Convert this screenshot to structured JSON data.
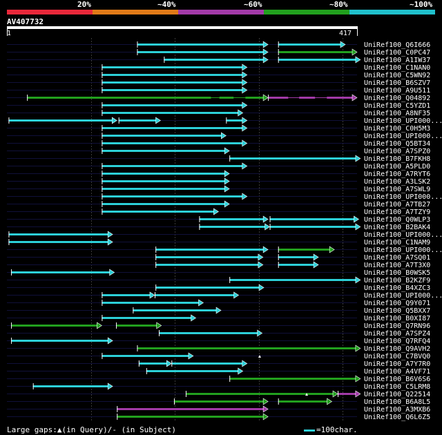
{
  "legend": {
    "labels": [
      "20%",
      "~40%",
      "~60%",
      "~80%",
      "~100%"
    ],
    "colors": [
      "#e8283a",
      "#e07a18",
      "#a23aa8",
      "#22a01e",
      "#20c0cc"
    ]
  },
  "query": {
    "title": "AV407732",
    "start": "1",
    "end": "417"
  },
  "footer": {
    "gaps_text": "Large gaps:▲(in Query)/- (in Subject)",
    "scale_text": "=100char."
  },
  "chart_data": {
    "type": "alignment-overview",
    "query_length": 417,
    "hits": [
      {
        "name": "UniRef100_Q6I666",
        "segs": [
          [
            155,
            311,
            "#2cd0d8"
          ],
          [
            323,
            403,
            "#2cd0d8"
          ]
        ]
      },
      {
        "name": "UniRef100_C0PC47",
        "segs": [
          [
            155,
            311,
            "#2cd0d8"
          ],
          [
            323,
            417,
            "#22a01e"
          ]
        ]
      },
      {
        "name": "UniRef100_A1IW37",
        "segs": [
          [
            187,
            311,
            "#2cd0d8"
          ],
          [
            323,
            421,
            "#2cd0d8"
          ]
        ]
      },
      {
        "name": "UniRef100_C1NAN0",
        "segs": [
          [
            113,
            286,
            "#2cd0d8"
          ]
        ]
      },
      {
        "name": "UniRef100_C5WN92",
        "segs": [
          [
            113,
            286,
            "#2cd0d8"
          ]
        ]
      },
      {
        "name": "UniRef100_B6SZV7",
        "segs": [
          [
            113,
            286,
            "#2cd0d8"
          ]
        ]
      },
      {
        "name": "UniRef100_A9U511",
        "segs": [
          [
            113,
            286,
            "#2cd0d8"
          ]
        ]
      },
      {
        "name": "UniRef100_Q04892",
        "segs": [
          [
            24,
            311,
            "#22a01e"
          ],
          [
            311,
            417,
            "#a23aa8"
          ]
        ]
      },
      {
        "name": "UniRef100_C5YZD1",
        "segs": [
          [
            113,
            286,
            "#2cd0d8"
          ]
        ]
      },
      {
        "name": "UniRef100_A8NF35",
        "segs": [
          [
            113,
            281,
            "#2cd0d8"
          ]
        ]
      },
      {
        "name": "UniRef100_UPI000...",
        "segs": [
          [
            2,
            131,
            "#2cd0d8"
          ],
          [
            133,
            183,
            "#2cd0d8"
          ],
          [
            261,
            286,
            "#2cd0d8"
          ]
        ]
      },
      {
        "name": "UniRef100_C0H5M3",
        "segs": [
          [
            113,
            286,
            "#2cd0d8"
          ]
        ]
      },
      {
        "name": "UniRef100_UPI000...",
        "segs": [
          [
            113,
            261,
            "#2cd0d8"
          ]
        ]
      },
      {
        "name": "UniRef100_Q5BT34",
        "segs": [
          [
            113,
            286,
            "#2cd0d8"
          ]
        ]
      },
      {
        "name": "UniRef100_A7SPZ0",
        "segs": [
          [
            113,
            265,
            "#2cd0d8"
          ]
        ]
      },
      {
        "name": "UniRef100_B7FKH8",
        "segs": [
          [
            265,
            421,
            "#2cd0d8"
          ]
        ]
      },
      {
        "name": "UniRef100_A5PLD0",
        "segs": [
          [
            113,
            286,
            "#2cd0d8"
          ]
        ]
      },
      {
        "name": "UniRef100_A7RYT6",
        "segs": [
          [
            113,
            265,
            "#2cd0d8"
          ]
        ]
      },
      {
        "name": "UniRef100_A3LSK2",
        "segs": [
          [
            113,
            265,
            "#2cd0d8"
          ]
        ]
      },
      {
        "name": "UniRef100_A7SWL9",
        "segs": [
          [
            113,
            265,
            "#2cd0d8"
          ]
        ]
      },
      {
        "name": "UniRef100_UPI000...",
        "segs": [
          [
            113,
            286,
            "#2cd0d8"
          ]
        ]
      },
      {
        "name": "UniRef100_A7TB27",
        "segs": [
          [
            113,
            265,
            "#2cd0d8"
          ]
        ]
      },
      {
        "name": "UniRef100_A7TZY9",
        "segs": [
          [
            113,
            252,
            "#2cd0d8"
          ]
        ]
      },
      {
        "name": "UniRef100_Q0WLP3",
        "segs": [
          [
            229,
            311,
            "#2cd0d8"
          ],
          [
            313,
            419,
            "#2cd0d8"
          ]
        ]
      },
      {
        "name": "UniRef100_B2BAK4",
        "segs": [
          [
            229,
            313,
            "#2cd0d8"
          ],
          [
            313,
            421,
            "#2cd0d8"
          ]
        ]
      },
      {
        "name": "UniRef100_UPI000...",
        "segs": [
          [
            2,
            126,
            "#2cd0d8"
          ]
        ]
      },
      {
        "name": "UniRef100_C1NAM9",
        "segs": [
          [
            2,
            126,
            "#2cd0d8"
          ]
        ]
      },
      {
        "name": "UniRef100_UPI000...",
        "segs": [
          [
            177,
            311,
            "#2cd0d8"
          ],
          [
            323,
            390,
            "#22a01e"
          ]
        ]
      },
      {
        "name": "UniRef100_A7SQ01",
        "segs": [
          [
            177,
            305,
            "#2cd0d8"
          ],
          [
            323,
            371,
            "#2cd0d8"
          ]
        ]
      },
      {
        "name": "UniRef100_A7T3X0",
        "segs": [
          [
            177,
            305,
            "#2cd0d8"
          ],
          [
            323,
            371,
            "#2cd0d8"
          ]
        ]
      },
      {
        "name": "UniRef100_B0WSK5",
        "segs": [
          [
            5,
            128,
            "#2cd0d8"
          ]
        ]
      },
      {
        "name": "UniRef100_B2KZF9",
        "segs": [
          [
            265,
            421,
            "#2cd0d8"
          ]
        ]
      },
      {
        "name": "UniRef100_B4XZC3",
        "segs": [
          [
            177,
            306,
            "#2cd0d8"
          ]
        ]
      },
      {
        "name": "UniRef100_UPI000...",
        "segs": [
          [
            113,
            176,
            "#2cd0d8"
          ],
          [
            176,
            276,
            "#2cd0d8"
          ]
        ]
      },
      {
        "name": "UniRef100_Q9Y071",
        "segs": [
          [
            113,
            234,
            "#2cd0d8"
          ]
        ]
      },
      {
        "name": "UniRef100_Q5BXX7",
        "segs": [
          [
            150,
            255,
            "#2cd0d8"
          ]
        ]
      },
      {
        "name": "UniRef100_B0XI87",
        "segs": [
          [
            113,
            225,
            "#2cd0d8"
          ]
        ]
      },
      {
        "name": "UniRef100_Q7RN96",
        "segs": [
          [
            5,
            113,
            "#22a01e"
          ],
          [
            130,
            184,
            "#22a01e"
          ]
        ]
      },
      {
        "name": "UniRef100_A7SPZ4",
        "segs": [
          [
            181,
            304,
            "#2cd0d8"
          ]
        ]
      },
      {
        "name": "UniRef100_Q7RFQ4",
        "segs": [
          [
            5,
            126,
            "#2cd0d8"
          ]
        ]
      },
      {
        "name": "UniRef100_Q9AVH2",
        "segs": [
          [
            155,
            421,
            "#22a01e"
          ]
        ]
      },
      {
        "name": "UniRef100_C7BVQ0",
        "segs": [
          [
            113,
            222,
            "#2cd0d8"
          ]
        ]
      },
      {
        "name": "UniRef100_A7Y7R0",
        "segs": [
          [
            157,
            196,
            "#2cd0d8"
          ],
          [
            196,
            286,
            "#2cd0d8"
          ]
        ]
      },
      {
        "name": "UniRef100_A4VF71",
        "segs": [
          [
            166,
            281,
            "#2cd0d8"
          ]
        ]
      },
      {
        "name": "UniRef100_B6V6S6",
        "segs": [
          [
            265,
            421,
            "#22a01e"
          ]
        ]
      },
      {
        "name": "UniRef100_C5LRM8",
        "segs": [
          [
            31,
            126,
            "#2cd0d8"
          ]
        ]
      },
      {
        "name": "UniRef100_Q22514",
        "segs": [
          [
            213,
            394,
            "#22a01e"
          ],
          [
            394,
            421,
            "#a23aa8"
          ]
        ]
      },
      {
        "name": "UniRef100_B6A8L5",
        "segs": [
          [
            199,
            311,
            "#22a01e"
          ],
          [
            323,
            387,
            "#22a01e"
          ]
        ]
      },
      {
        "name": "UniRef100_A3MXB6",
        "segs": [
          [
            131,
            311,
            "#a23aa8"
          ]
        ]
      },
      {
        "name": "UniRef100_Q6L6Z5",
        "segs": [
          [
            131,
            311,
            "#22a01e"
          ]
        ]
      }
    ],
    "large_gap_marks": [
      [
        41,
        301
      ],
      [
        46,
        357
      ]
    ],
    "thin_gap_lines": [
      [
        7,
        [
          [
            243,
            253
          ],
          [
            270,
            284
          ],
          [
            335,
            348
          ],
          [
            367,
            381
          ]
        ]
      ]
    ]
  }
}
